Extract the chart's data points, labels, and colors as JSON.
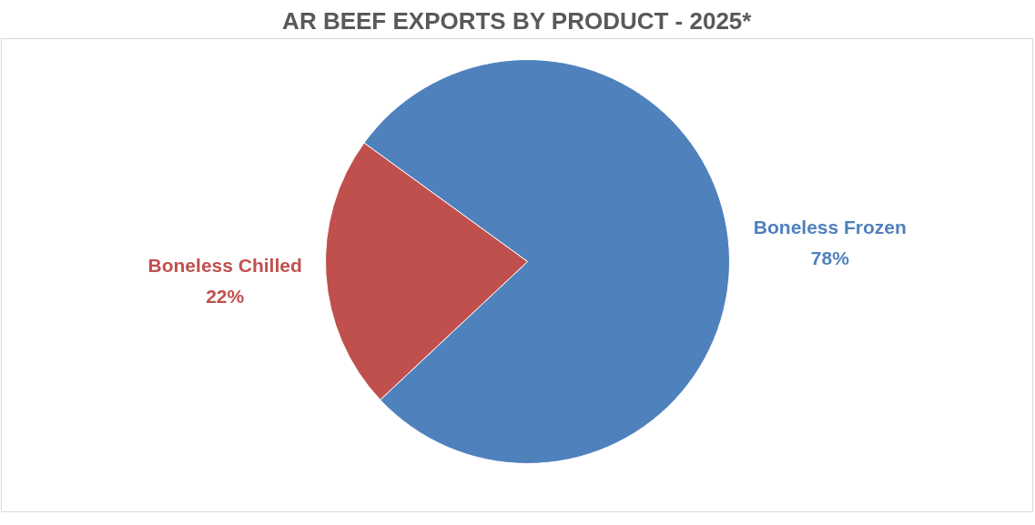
{
  "chart_data": {
    "type": "pie",
    "title": "AR BEEF EXPORTS BY PRODUCT - 2025*",
    "categories": [
      "Boneless Frozen",
      "Boneless Chilled"
    ],
    "values": [
      78,
      22
    ],
    "colors": [
      "#4f81bd",
      "#c0504d"
    ],
    "value_labels": [
      "78%",
      "22%"
    ]
  }
}
